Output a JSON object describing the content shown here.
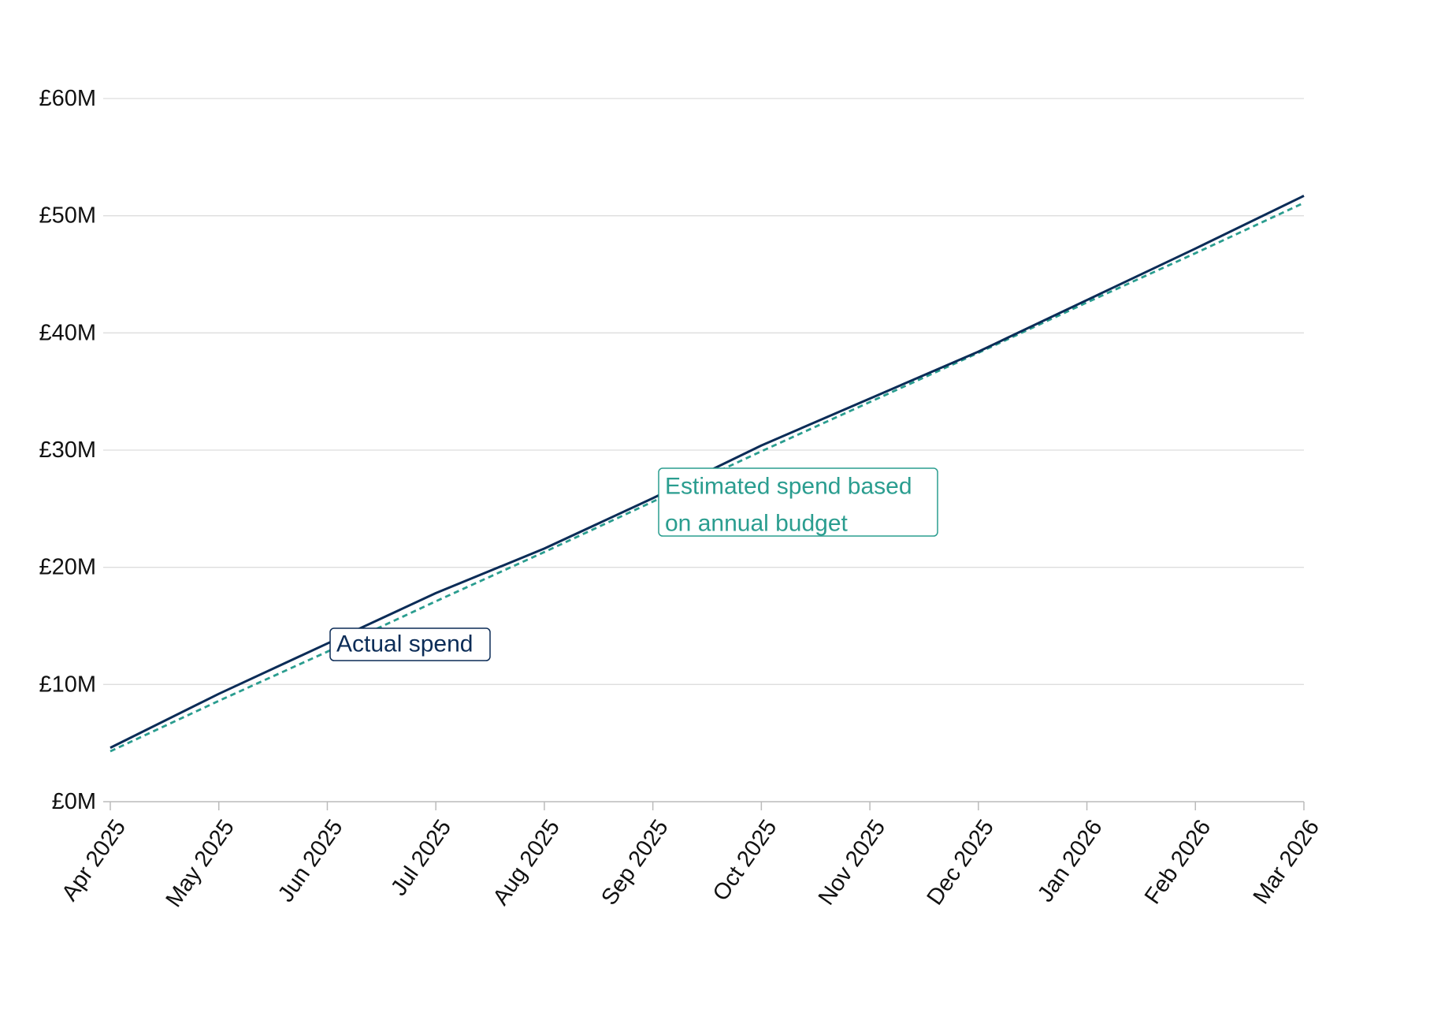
{
  "chart_data": {
    "type": "line",
    "title": "",
    "xlabel": "",
    "ylabel": "",
    "categories": [
      "Apr 2025",
      "May 2025",
      "Jun 2025",
      "Jul 2025",
      "Aug 2025",
      "Sep 2025",
      "Oct 2025",
      "Nov 2025",
      "Dec 2025",
      "Jan 2026",
      "Feb 2026",
      "Mar 2026"
    ],
    "ylim": [
      0,
      60
    ],
    "yticks": [
      0,
      10,
      20,
      30,
      40,
      50,
      60
    ],
    "ytick_labels": [
      "£0M",
      "£10M",
      "£20M",
      "£30M",
      "£40M",
      "£50M",
      "£60M"
    ],
    "grid": "horizontal",
    "legend": "none",
    "series": [
      {
        "name": "Actual spend",
        "style": "solid",
        "color": "#0b2c57",
        "values": [
          4.6,
          9.2,
          13.5,
          17.8,
          21.6,
          25.9,
          30.4,
          34.4,
          38.4,
          42.8,
          47.2,
          51.7
        ]
      },
      {
        "name": "Estimated spend based on annual budget",
        "style": "dashed",
        "color": "#2a9d8f",
        "values": [
          4.3,
          8.6,
          12.8,
          17.1,
          21.3,
          25.6,
          29.9,
          34.1,
          38.3,
          42.6,
          46.8,
          51.1
        ]
      }
    ],
    "annotations": [
      {
        "series": 0,
        "lines": [
          "Actual spend"
        ],
        "color": "#0b2c57"
      },
      {
        "series": 1,
        "lines": [
          "Estimated spend based",
          "on annual budget"
        ],
        "color": "#2a9d8f"
      }
    ]
  }
}
